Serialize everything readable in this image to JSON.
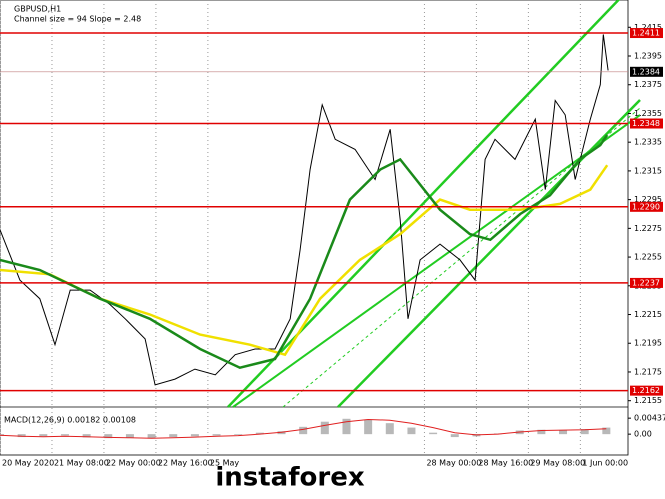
{
  "chart_data": [
    {
      "type": "line",
      "title": "GBPUSD,H1",
      "subtitle": "Channel size = 94 Slope = 2.48",
      "xlim": [
        0,
        145
      ],
      "ylim": [
        1.2152,
        1.2434
      ],
      "grid": true,
      "xticks": [
        {
          "value": 0,
          "label": "20 May 2020"
        },
        {
          "value": 12,
          "label": "21 May 08:00"
        },
        {
          "value": 24,
          "label": "22 May 00:00"
        },
        {
          "value": 36,
          "label": "22 May 16:00"
        },
        {
          "value": 48,
          "label": "25 May"
        },
        {
          "value": 98,
          "label": "28 May 00:00"
        },
        {
          "value": 110,
          "label": "28 May 16:00"
        },
        {
          "value": 122,
          "label": "29 May 08:00"
        },
        {
          "value": 134,
          "label": "1 Jun 00:00"
        }
      ],
      "yticks": [
        1.2415,
        1.2395,
        1.2375,
        1.2355,
        1.2335,
        1.2315,
        1.2295,
        1.2275,
        1.2255,
        1.2235,
        1.2215,
        1.2195,
        1.2175,
        1.2155
      ],
      "levels": [
        1.2411,
        1.2348,
        {
          "value": 1.229,
          "label": "1.2290"
        },
        1.2237,
        1.2162
      ],
      "level_color": "#e00000",
      "last_price": 1.2384,
      "series": [
        {
          "color": "#000000",
          "x": [
            0,
            4.6,
            9.2,
            12.7,
            16.2,
            20.8,
            25.4,
            28.9,
            33.5,
            35.8,
            40.4,
            45,
            49.7,
            54.3,
            58.9,
            63.5,
            67,
            69.3,
            71.6,
            74.4,
            77.4,
            82,
            86.6,
            90.1,
            92.4,
            94.2,
            97,
            101.6,
            106.2,
            109.7,
            112,
            114.3,
            118.9,
            123.6,
            125.9,
            128.2,
            130.5,
            132.8,
            136.3,
            138.6,
            139.3,
            140.4
          ],
          "values": [
            1.2274,
            1.2239,
            1.2226,
            1.2194,
            1.2232,
            1.2232,
            1.2222,
            1.2212,
            1.2198,
            1.2166,
            1.217,
            1.2177,
            1.2173,
            1.2187,
            1.2191,
            1.2191,
            1.2212,
            1.226,
            1.2316,
            1.2361,
            1.2337,
            1.233,
            1.2309,
            1.2344,
            1.2281,
            1.2212,
            1.2253,
            1.2264,
            1.2253,
            1.2239,
            1.2323,
            1.2337,
            1.2323,
            1.2351,
            1.2302,
            1.2364,
            1.2354,
            1.2309,
            1.2351,
            1.2375,
            1.241,
            1.2385
          ]
        },
        {
          "color": "#f0e000",
          "x": [
            0,
            11.5,
            23.1,
            34.6,
            46.2,
            57.7,
            65.8,
            73.9,
            83.1,
            92.4,
            101.6,
            108.5,
            120.1,
            129.3,
            136.3,
            140.2
          ],
          "values": [
            1.2246,
            1.2243,
            1.2226,
            1.2215,
            1.2201,
            1.2194,
            1.2187,
            1.2226,
            1.2253,
            1.2271,
            1.2295,
            1.2288,
            1.2288,
            1.2292,
            1.2302,
            1.2319
          ]
        },
        {
          "color": "#1a8a1a",
          "x": [
            0,
            9.2,
            23.1,
            34.6,
            46.2,
            55.4,
            63.5,
            71.6,
            80.8,
            87.8,
            92.4,
            101.6,
            108.5,
            113.2,
            120.1,
            127,
            133.9,
            138.6,
            140.2
          ],
          "values": [
            1.2253,
            1.2246,
            1.2226,
            1.2212,
            1.2191,
            1.2178,
            1.2184,
            1.2226,
            1.2295,
            1.2316,
            1.2323,
            1.2288,
            1.2271,
            1.2267,
            1.2285,
            1.2298,
            1.2323,
            1.2333,
            1.234
          ]
        }
      ]
    },
    {
      "type": "bar",
      "title": "MACD(12,26,9) 0.00182 0.00108",
      "color": "#b8b8b8",
      "xlim": [
        0,
        145
      ],
      "ylim": [
        -0.0057,
        0.0066
      ],
      "yticks": [
        0.00437,
        {
          "value": 0,
          "label": "0.00"
        }
      ],
      "x": [
        0,
        5,
        10,
        15,
        20,
        25,
        30,
        35,
        40,
        45,
        50,
        55,
        60,
        65,
        70,
        75,
        80,
        85,
        90,
        95,
        100,
        105,
        110,
        115,
        120,
        125,
        130,
        135,
        140
      ],
      "values": [
        -0.0005,
        -0.0008,
        -0.0006,
        -0.0004,
        -0.0009,
        -0.0011,
        -0.001,
        -0.0012,
        -0.0008,
        -0.0006,
        -0.0004,
        -0.0002,
        0.0004,
        0.0008,
        0.002,
        0.0034,
        0.0042,
        0.004,
        0.003,
        0.0018,
        0.0004,
        -0.0008,
        -0.0006,
        0.0002,
        0.001,
        0.0012,
        0.001,
        0.0014,
        0.0018
      ],
      "signal": {
        "color": "#e02020",
        "values": [
          -0.0003,
          -0.0006,
          -0.0007,
          -0.0006,
          -0.0007,
          -0.0009,
          -0.001,
          -0.0011,
          -0.001,
          -0.0008,
          -0.0006,
          -0.0004,
          0,
          0.0005,
          0.0013,
          0.0024,
          0.0034,
          0.004,
          0.0038,
          0.003,
          0.0018,
          0.0004,
          -0.0002,
          0,
          0.0006,
          0.001,
          0.0011,
          0.0012,
          0.0015
        ]
      }
    }
  ],
  "watermark": "instaforex"
}
